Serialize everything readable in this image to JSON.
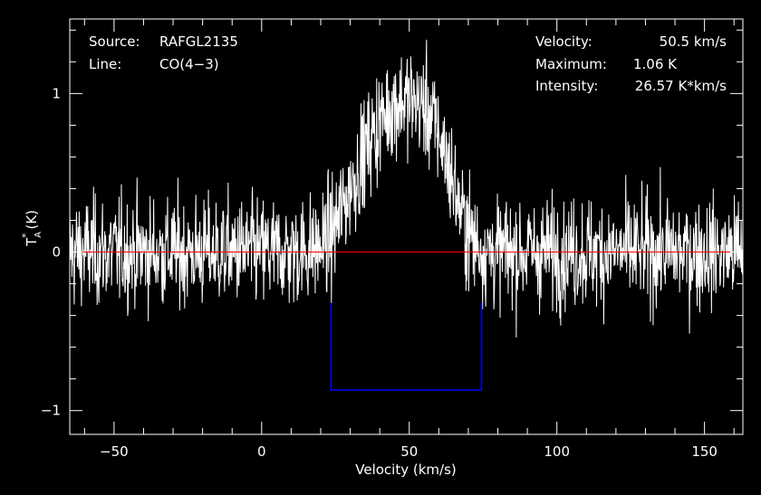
{
  "chart_data": {
    "type": "line",
    "xlabel": "Velocity (km/s)",
    "ylabel": "T_A^* (K)",
    "xlim": [
      -65,
      163
    ],
    "ylim": [
      -1.15,
      1.47
    ],
    "x_ticks": [
      -50,
      0,
      50,
      100,
      150
    ],
    "y_ticks": [
      -1,
      0,
      1
    ],
    "x_tick_labels": [
      "−50",
      "0",
      "50",
      "100",
      "150"
    ],
    "y_tick_labels": [
      "−1",
      "0",
      "1"
    ],
    "series": [
      {
        "color": "#ffffff",
        "baseline_noise_rms": 0.17,
        "x": [
          -65,
          -50,
          -40,
          -30,
          -20,
          -10,
          0,
          10,
          20,
          24,
          28,
          32,
          36,
          40,
          44,
          48,
          52,
          56,
          60,
          64,
          68,
          72,
          76,
          80,
          90,
          100,
          110,
          120,
          130,
          140,
          150,
          163
        ],
        "y": [
          0,
          0,
          0,
          0,
          0,
          0,
          0,
          0,
          0.03,
          0.12,
          0.3,
          0.5,
          0.68,
          0.82,
          0.92,
          0.96,
          0.95,
          0.9,
          0.75,
          0.5,
          0.22,
          0.06,
          0.01,
          0,
          0,
          0,
          0,
          0,
          0,
          0,
          0,
          0
        ]
      }
    ],
    "baseline": {
      "y": 0,
      "color": "#ff0000"
    },
    "window": {
      "x_start": 23.5,
      "x_end": 74.5,
      "y": -0.87,
      "color": "#0000ff"
    },
    "annotations": {
      "source_label": "Source:",
      "source_value": "RAFGL2135",
      "line_label": "Line:",
      "line_value": "CO(4−3)",
      "velocity_label": "Velocity:",
      "velocity_value": "50.5 km/s",
      "maximum_label": "Maximum:",
      "maximum_value": "1.06 K",
      "intensity_label": "Intensity:",
      "intensity_value": "26.57 K*km/s"
    }
  }
}
